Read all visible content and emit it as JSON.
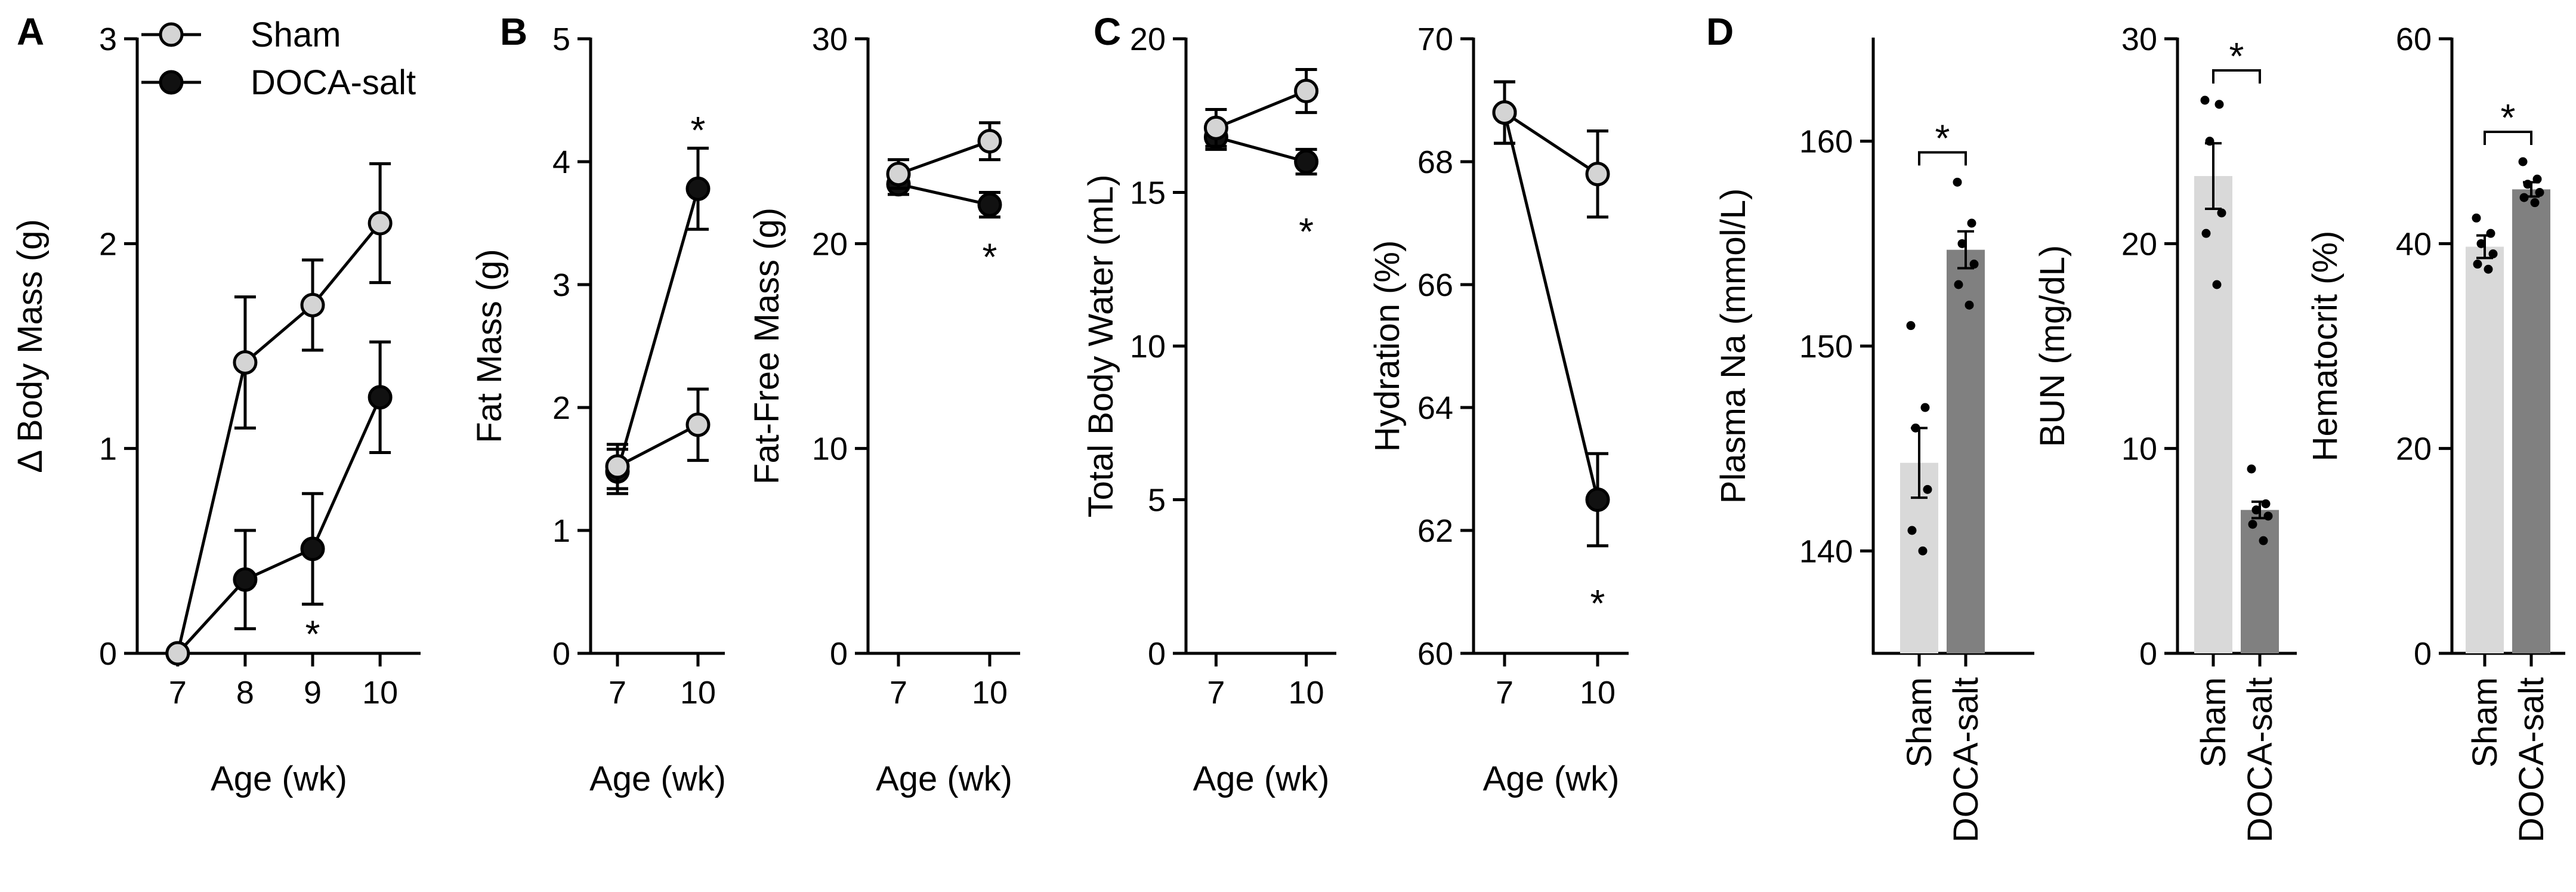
{
  "colors": {
    "sham": "#d4d4d4",
    "doca": "#111111",
    "sham_bar": "#d9d9d9",
    "doca_bar": "#808080",
    "axis": "#000000"
  },
  "panel_letters": [
    "A",
    "B",
    "C",
    "D"
  ],
  "legend": [
    "Sham",
    "DOCA-salt"
  ],
  "chart_data": [
    {
      "id": "delta-body-mass",
      "panel": "A",
      "type": "line",
      "title": "",
      "xlabel": "Age (wk)",
      "ylabel": "Δ Body Mass (g)",
      "x": [
        7,
        8,
        9,
        10
      ],
      "xticks": [
        "7",
        "8",
        "9",
        "10"
      ],
      "xlim": [
        6.4,
        10.6
      ],
      "ylim": [
        0,
        3
      ],
      "yticks": [
        "0",
        "1",
        "2",
        "3"
      ],
      "series": [
        {
          "name": "Sham",
          "values": [
            0,
            1.42,
            1.7,
            2.1
          ],
          "errors": [
            0,
            0.32,
            0.22,
            0.29
          ]
        },
        {
          "name": "DOCA-salt",
          "values": [
            0,
            0.36,
            0.51,
            1.25
          ],
          "errors": [
            0,
            0.24,
            0.27,
            0.27
          ]
        }
      ],
      "annotations": [
        {
          "text": "*",
          "x": 9,
          "y": 0.06
        }
      ]
    },
    {
      "id": "fat-mass",
      "panel": "B",
      "type": "line",
      "title": "",
      "xlabel": "Age (wk)",
      "ylabel": "Fat Mass (g)",
      "x": [
        7,
        10
      ],
      "xticks": [
        "7",
        "10"
      ],
      "xlim": [
        6,
        11
      ],
      "ylim": [
        0,
        5
      ],
      "yticks": [
        "0",
        "1",
        "2",
        "3",
        "4",
        "5"
      ],
      "series": [
        {
          "name": "Sham",
          "values": [
            1.52,
            1.86
          ],
          "errors": [
            0.18,
            0.29
          ]
        },
        {
          "name": "DOCA-salt",
          "values": [
            1.48,
            3.78
          ],
          "errors": [
            0.18,
            0.33
          ]
        }
      ],
      "annotations": [
        {
          "text": "*",
          "x": 10,
          "y": 4.2
        }
      ]
    },
    {
      "id": "fat-free-mass",
      "panel": "",
      "type": "line",
      "title": "",
      "xlabel": "Age (wk)",
      "ylabel": "Fat-Free Mass (g)",
      "x": [
        7,
        10
      ],
      "xticks": [
        "7",
        "10"
      ],
      "xlim": [
        6,
        11
      ],
      "ylim": [
        0,
        30
      ],
      "yticks": [
        "0",
        "10",
        "20",
        "30"
      ],
      "series": [
        {
          "name": "Sham",
          "values": [
            23.4,
            25.0
          ],
          "errors": [
            0.7,
            0.9
          ]
        },
        {
          "name": "DOCA-salt",
          "values": [
            22.9,
            21.9
          ],
          "errors": [
            0.5,
            0.6
          ]
        }
      ],
      "annotations": [
        {
          "text": "*",
          "x": 10,
          "y": 19.0
        }
      ]
    },
    {
      "id": "total-body-water",
      "panel": "C",
      "type": "line",
      "title": "",
      "xlabel": "Age (wk)",
      "ylabel": "Total Body Water (mL)",
      "x": [
        7,
        10
      ],
      "xticks": [
        "7",
        "10"
      ],
      "xlim": [
        6,
        11
      ],
      "ylim": [
        0,
        20
      ],
      "yticks": [
        "0",
        "5",
        "10",
        "15",
        "20"
      ],
      "series": [
        {
          "name": "Sham",
          "values": [
            17.1,
            18.3
          ],
          "errors": [
            0.6,
            0.7
          ]
        },
        {
          "name": "DOCA-salt",
          "values": [
            16.8,
            16.0
          ],
          "errors": [
            0.4,
            0.4
          ]
        }
      ],
      "annotations": [
        {
          "text": "*",
          "x": 10,
          "y": 13.5
        }
      ]
    },
    {
      "id": "hydration",
      "panel": "",
      "type": "line",
      "title": "",
      "xlabel": "Age (wk)",
      "ylabel": "Hydration (%)",
      "x": [
        7,
        10
      ],
      "xticks": [
        "7",
        "10"
      ],
      "xlim": [
        6,
        11
      ],
      "ylim": [
        60,
        70
      ],
      "yticks": [
        "60",
        "62",
        "64",
        "66",
        "68",
        "70"
      ],
      "series": [
        {
          "name": "Sham",
          "values": [
            68.8,
            67.8
          ],
          "errors": [
            0.5,
            0.7
          ]
        },
        {
          "name": "DOCA-salt",
          "values": [
            68.8,
            62.5
          ],
          "errors": [
            0.5,
            0.75
          ]
        }
      ],
      "annotations": [
        {
          "text": "*",
          "x": 10,
          "y": 60.7
        }
      ]
    },
    {
      "id": "plasma-na",
      "panel": "D",
      "type": "bar",
      "title": "",
      "xlabel": "",
      "ylabel": "Plasma Na (mmol/L)",
      "categories": [
        "Sham",
        "DOCA-salt"
      ],
      "ylim": [
        135,
        165
      ],
      "yticks": [
        "140",
        "150",
        "160"
      ],
      "values": [
        144.3,
        154.7
      ],
      "errors": [
        1.7,
        0.9
      ],
      "points": [
        [
          151,
          147,
          146,
          143,
          141,
          140
        ],
        [
          158,
          156,
          155,
          154,
          153,
          152
        ]
      ],
      "significance": "*"
    },
    {
      "id": "bun",
      "panel": "",
      "type": "bar",
      "title": "",
      "xlabel": "",
      "ylabel": "BUN (mg/dL)",
      "categories": [
        "Sham",
        "DOCA-salt"
      ],
      "ylim": [
        0,
        30
      ],
      "yticks": [
        "0",
        "10",
        "20",
        "30"
      ],
      "values": [
        23.3,
        7.0
      ],
      "errors": [
        1.6,
        0.4
      ],
      "points": [
        [
          27,
          26.8,
          25,
          21.5,
          20.5,
          18
        ],
        [
          9,
          7.3,
          7.0,
          6.7,
          6.3,
          5.5
        ]
      ],
      "significance": "*"
    },
    {
      "id": "hematocrit",
      "panel": "",
      "type": "bar",
      "title": "",
      "xlabel": "",
      "ylabel": "Hematocrit (%)",
      "categories": [
        "Sham",
        "DOCA-salt"
      ],
      "ylim": [
        0,
        60
      ],
      "yticks": [
        "0",
        "20",
        "40",
        "60"
      ],
      "values": [
        39.7,
        45.3
      ],
      "errors": [
        1.1,
        0.7
      ],
      "points": [
        [
          42.5,
          41,
          40,
          39,
          38,
          37.5
        ],
        [
          48,
          46.3,
          45.8,
          45,
          44.5,
          44
        ]
      ],
      "significance": "*"
    }
  ]
}
